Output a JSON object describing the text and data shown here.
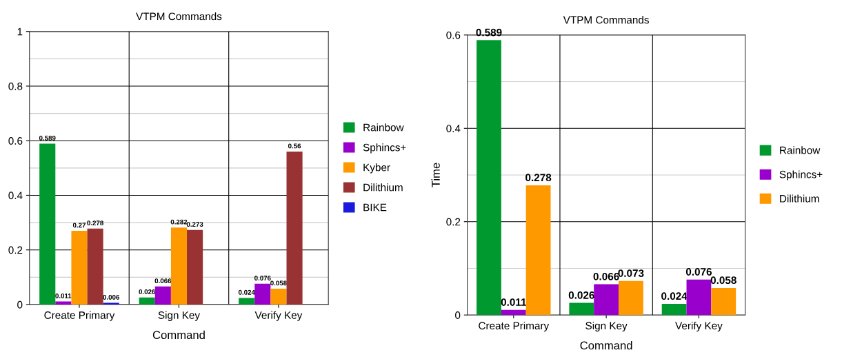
{
  "chart_data": [
    {
      "type": "bar",
      "title": "VTPM Commands",
      "xlabel": "Command",
      "categories": [
        "Create Primary",
        "Sign Key",
        "Verify Key"
      ],
      "series": [
        {
          "name": "Rainbow",
          "color": "#00992f",
          "values": [
            0.589,
            0.026,
            0.024
          ]
        },
        {
          "name": "Sphincs+",
          "color": "#9900cc",
          "values": [
            0.011,
            0.066,
            0.076
          ]
        },
        {
          "name": "Kyber",
          "color": "#ff9900",
          "values": [
            0.27,
            0.282,
            0.058
          ]
        },
        {
          "name": "Dilithium",
          "color": "#993333",
          "values": [
            0.278,
            0.273,
            0.56
          ]
        },
        {
          "name": "BIKE",
          "color": "#1a1add",
          "values": [
            0.006,
            null,
            null
          ]
        }
      ],
      "ylim": [
        0,
        1
      ],
      "yticks": [
        0,
        {
          "value": 0.1,
          "label": null
        },
        0.2,
        {
          "value": 0.3,
          "label": null
        },
        0.4,
        {
          "value": 0.5,
          "label": null
        },
        0.6,
        {
          "value": 0.7,
          "label": null
        },
        0.8,
        {
          "value": 0.9,
          "label": null
        },
        1
      ],
      "grid": "y",
      "legend": "right",
      "data_labels": true
    },
    {
      "type": "bar",
      "title": "VTPM Commands",
      "xlabel": "Command",
      "ylabel": "Time",
      "categories": [
        "Create Primary",
        "Sign Key",
        "Verify Key"
      ],
      "series": [
        {
          "name": "Rainbow",
          "color": "#00992f",
          "values": [
            0.589,
            0.026,
            0.024
          ]
        },
        {
          "name": "Sphincs+",
          "color": "#9900cc",
          "values": [
            0.011,
            0.066,
            0.076
          ]
        },
        {
          "name": "Dilithium",
          "color": "#ff9900",
          "values": [
            0.278,
            0.073,
            0.058
          ]
        }
      ],
      "ylim": [
        0,
        0.6
      ],
      "yticks": [
        0,
        {
          "value": 0.1,
          "label": null
        },
        0.2,
        {
          "value": 0.3,
          "label": null
        },
        0.4,
        {
          "value": 0.5,
          "label": null
        },
        0.6
      ],
      "grid": "y",
      "legend": "right",
      "data_labels": true
    }
  ]
}
